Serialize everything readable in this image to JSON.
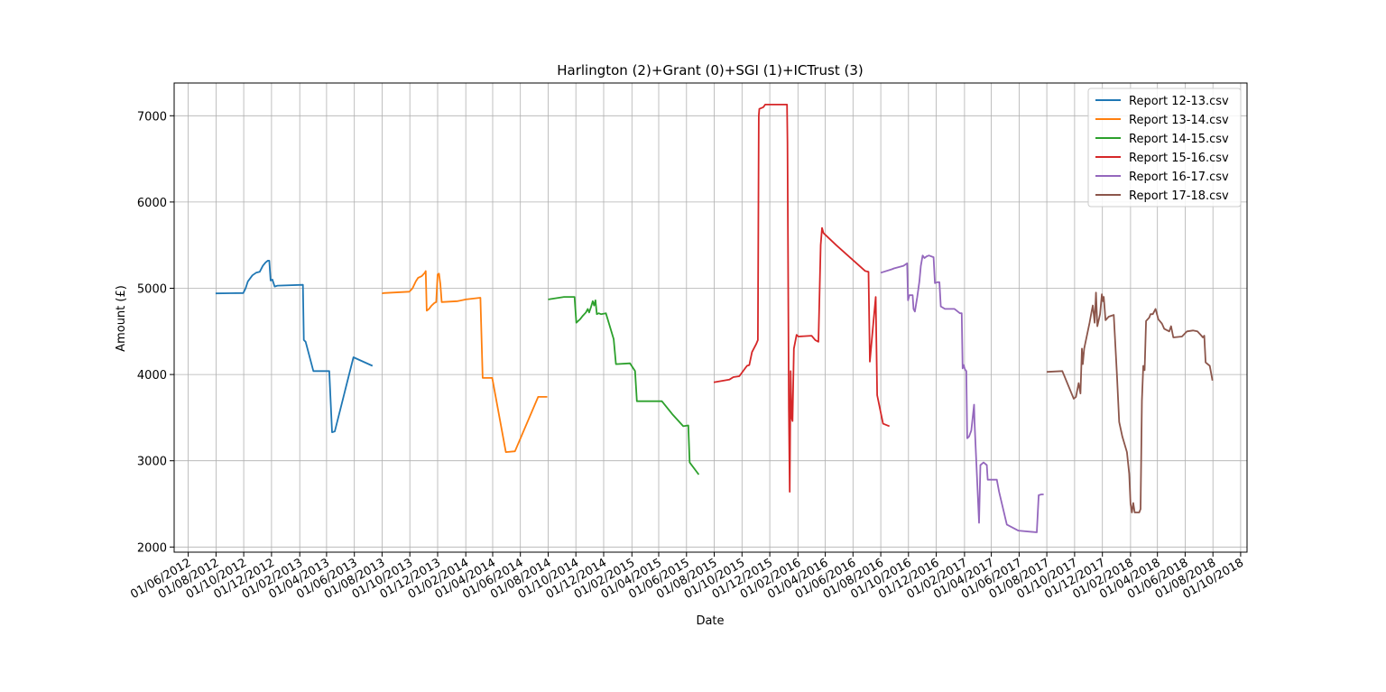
{
  "chart_data": {
    "type": "line",
    "title": "Harlington (2)+Grant (0)+SGI (1)+ICTrust (3)",
    "xlabel": "Date",
    "ylabel": "Amount (£)",
    "xlim": [
      "2012-05-01",
      "2018-10-15"
    ],
    "ylim": [
      1940,
      7380
    ],
    "grid": true,
    "legend_position": "top-right",
    "x_ticks": [
      "01/06/2012",
      "01/08/2012",
      "01/10/2012",
      "01/12/2012",
      "01/02/2013",
      "01/04/2013",
      "01/06/2013",
      "01/08/2013",
      "01/10/2013",
      "01/12/2013",
      "01/02/2014",
      "01/04/2014",
      "01/06/2014",
      "01/08/2014",
      "01/10/2014",
      "01/12/2014",
      "01/02/2015",
      "01/04/2015",
      "01/06/2015",
      "01/08/2015",
      "01/10/2015",
      "01/12/2015",
      "01/02/2016",
      "01/04/2016",
      "01/06/2016",
      "01/08/2016",
      "01/10/2016",
      "01/12/2016",
      "01/02/2017",
      "01/04/2017",
      "01/06/2017",
      "01/08/2017",
      "01/10/2017",
      "01/12/2017",
      "01/02/2018",
      "01/04/2018",
      "01/06/2018",
      "01/08/2018",
      "01/10/2018"
    ],
    "x_tick_dates": [
      "2012-06-01",
      "2012-08-01",
      "2012-10-01",
      "2012-12-01",
      "2013-02-01",
      "2013-04-01",
      "2013-06-01",
      "2013-08-01",
      "2013-10-01",
      "2013-12-01",
      "2014-02-01",
      "2014-04-01",
      "2014-06-01",
      "2014-08-01",
      "2014-10-01",
      "2014-12-01",
      "2015-02-01",
      "2015-04-01",
      "2015-06-01",
      "2015-08-01",
      "2015-10-01",
      "2015-12-01",
      "2016-02-01",
      "2016-04-01",
      "2016-06-01",
      "2016-08-01",
      "2016-10-01",
      "2016-12-01",
      "2017-02-01",
      "2017-04-01",
      "2017-06-01",
      "2017-08-01",
      "2017-10-01",
      "2017-12-01",
      "2018-02-01",
      "2018-04-01",
      "2018-06-01",
      "2018-08-01",
      "2018-10-01"
    ],
    "y_ticks": [
      2000,
      3000,
      4000,
      5000,
      6000,
      7000
    ],
    "series": [
      {
        "name": "Report 12-13.csv",
        "color": "#1f77b4",
        "points": [
          [
            "2012-07-31",
            4940
          ],
          [
            "2012-09-30",
            4945
          ],
          [
            "2012-10-05",
            5000
          ],
          [
            "2012-10-10",
            5080
          ],
          [
            "2012-10-20",
            5150
          ],
          [
            "2012-10-28",
            5180
          ],
          [
            "2012-11-05",
            5190
          ],
          [
            "2012-11-12",
            5260
          ],
          [
            "2012-11-18",
            5300
          ],
          [
            "2012-11-23",
            5320
          ],
          [
            "2012-11-26",
            5320
          ],
          [
            "2012-11-29",
            5090
          ],
          [
            "2012-12-03",
            5100
          ],
          [
            "2012-12-08",
            5020
          ],
          [
            "2012-12-14",
            5030
          ],
          [
            "2013-02-08",
            5040
          ],
          [
            "2013-02-10",
            4400
          ],
          [
            "2013-02-14",
            4380
          ],
          [
            "2013-03-03",
            4040
          ],
          [
            "2013-04-07",
            4040
          ],
          [
            "2013-04-13",
            3330
          ],
          [
            "2013-04-19",
            3340
          ],
          [
            "2013-05-30",
            4200
          ],
          [
            "2013-07-11",
            4100
          ]
        ]
      },
      {
        "name": "Report 13-14.csv",
        "color": "#ff7f0e",
        "points": [
          [
            "2013-08-01",
            4940
          ],
          [
            "2013-08-05",
            4945
          ],
          [
            "2013-09-30",
            4960
          ],
          [
            "2013-10-07",
            5000
          ],
          [
            "2013-10-14",
            5080
          ],
          [
            "2013-10-19",
            5120
          ],
          [
            "2013-10-27",
            5140
          ],
          [
            "2013-11-03",
            5180
          ],
          [
            "2013-11-05",
            5200
          ],
          [
            "2013-11-07",
            4740
          ],
          [
            "2013-11-12",
            4760
          ],
          [
            "2013-11-18",
            4800
          ],
          [
            "2013-11-24",
            4830
          ],
          [
            "2013-11-28",
            4840
          ],
          [
            "2013-12-01",
            5160
          ],
          [
            "2013-12-04",
            5170
          ],
          [
            "2013-12-07",
            5050
          ],
          [
            "2013-12-10",
            4840
          ],
          [
            "2014-01-14",
            4850
          ],
          [
            "2014-02-01",
            4870
          ],
          [
            "2014-03-05",
            4890
          ],
          [
            "2014-03-10",
            3960
          ],
          [
            "2014-03-31",
            3960
          ],
          [
            "2014-04-30",
            3100
          ],
          [
            "2014-05-20",
            3110
          ],
          [
            "2014-07-10",
            3740
          ],
          [
            "2014-07-30",
            3740
          ]
        ]
      },
      {
        "name": "Report 14-15.csv",
        "color": "#2ca02c",
        "points": [
          [
            "2014-08-01",
            4870
          ],
          [
            "2014-09-05",
            4900
          ],
          [
            "2014-09-28",
            4900
          ],
          [
            "2014-10-02",
            4600
          ],
          [
            "2014-10-10",
            4640
          ],
          [
            "2014-10-16",
            4680
          ],
          [
            "2014-10-23",
            4720
          ],
          [
            "2014-10-27",
            4760
          ],
          [
            "2014-10-30",
            4720
          ],
          [
            "2014-11-03",
            4780
          ],
          [
            "2014-11-07",
            4850
          ],
          [
            "2014-11-10",
            4800
          ],
          [
            "2014-11-13",
            4860
          ],
          [
            "2014-11-16",
            4700
          ],
          [
            "2014-11-20",
            4710
          ],
          [
            "2014-11-25",
            4700
          ],
          [
            "2014-12-06",
            4710
          ],
          [
            "2014-12-23",
            4410
          ],
          [
            "2014-12-28",
            4120
          ],
          [
            "2015-01-28",
            4130
          ],
          [
            "2015-02-08",
            4040
          ],
          [
            "2015-02-12",
            3690
          ],
          [
            "2015-04-08",
            3690
          ],
          [
            "2015-05-01",
            3540
          ],
          [
            "2015-05-25",
            3400
          ],
          [
            "2015-06-05",
            3410
          ],
          [
            "2015-06-08",
            2980
          ],
          [
            "2015-06-28",
            2840
          ]
        ]
      },
      {
        "name": "Report 15-16.csv",
        "color": "#d62728",
        "points": [
          [
            "2015-07-31",
            3910
          ],
          [
            "2015-09-03",
            3940
          ],
          [
            "2015-09-12",
            3970
          ],
          [
            "2015-09-25",
            3980
          ],
          [
            "2015-10-12",
            4100
          ],
          [
            "2015-10-17",
            4110
          ],
          [
            "2015-10-23",
            4260
          ],
          [
            "2015-11-01",
            4350
          ],
          [
            "2015-11-05",
            4400
          ],
          [
            "2015-11-07",
            7000
          ],
          [
            "2015-11-08",
            7080
          ],
          [
            "2015-11-17",
            7100
          ],
          [
            "2015-11-21",
            7130
          ],
          [
            "2015-12-12",
            7130
          ],
          [
            "2016-01-08",
            7130
          ],
          [
            "2016-01-09",
            6700
          ],
          [
            "2016-01-12",
            3600
          ],
          [
            "2016-01-14",
            2640
          ],
          [
            "2016-01-16",
            4040
          ],
          [
            "2016-01-18",
            3500
          ],
          [
            "2016-01-20",
            3460
          ],
          [
            "2016-01-23",
            4300
          ],
          [
            "2016-01-29",
            4460
          ],
          [
            "2016-02-02",
            4440
          ],
          [
            "2016-03-02",
            4450
          ],
          [
            "2016-03-10",
            4400
          ],
          [
            "2016-03-17",
            4380
          ],
          [
            "2016-03-22",
            5500
          ],
          [
            "2016-03-25",
            5700
          ],
          [
            "2016-03-28",
            5640
          ],
          [
            "2016-04-25",
            5500
          ],
          [
            "2016-06-28",
            5200
          ],
          [
            "2016-07-05",
            5190
          ],
          [
            "2016-07-08",
            4150
          ],
          [
            "2016-07-14",
            4500
          ],
          [
            "2016-07-21",
            4900
          ],
          [
            "2016-07-24",
            3760
          ],
          [
            "2016-08-06",
            3430
          ],
          [
            "2016-08-20",
            3400
          ]
        ]
      },
      {
        "name": "Report 16-17.csv",
        "color": "#9467bd",
        "points": [
          [
            "2016-08-01",
            5180
          ],
          [
            "2016-08-25",
            5220
          ],
          [
            "2016-08-30",
            5230
          ],
          [
            "2016-09-20",
            5260
          ],
          [
            "2016-09-28",
            5290
          ],
          [
            "2016-09-30",
            4860
          ],
          [
            "2016-10-03",
            4920
          ],
          [
            "2016-10-10",
            4920
          ],
          [
            "2016-10-12",
            4760
          ],
          [
            "2016-10-15",
            4730
          ],
          [
            "2016-10-20",
            4890
          ],
          [
            "2016-10-25",
            5080
          ],
          [
            "2016-10-28",
            5260
          ],
          [
            "2016-11-01",
            5380
          ],
          [
            "2016-11-05",
            5350
          ],
          [
            "2016-11-10",
            5370
          ],
          [
            "2016-11-15",
            5380
          ],
          [
            "2016-11-25",
            5360
          ],
          [
            "2016-11-28",
            5060
          ],
          [
            "2016-12-03",
            5070
          ],
          [
            "2016-12-08",
            5070
          ],
          [
            "2016-12-11",
            4790
          ],
          [
            "2016-12-20",
            4760
          ],
          [
            "2017-01-10",
            4760
          ],
          [
            "2017-01-22",
            4710
          ],
          [
            "2017-01-26",
            4710
          ],
          [
            "2017-01-28",
            4070
          ],
          [
            "2017-01-30",
            4110
          ],
          [
            "2017-02-02",
            4060
          ],
          [
            "2017-02-05",
            4040
          ],
          [
            "2017-02-07",
            3260
          ],
          [
            "2017-02-11",
            3280
          ],
          [
            "2017-02-16",
            3350
          ],
          [
            "2017-02-22",
            3650
          ],
          [
            "2017-02-23",
            3450
          ],
          [
            "2017-03-05",
            2280
          ],
          [
            "2017-03-08",
            2950
          ],
          [
            "2017-03-15",
            2980
          ],
          [
            "2017-03-22",
            2950
          ],
          [
            "2017-03-24",
            2780
          ],
          [
            "2017-04-13",
            2780
          ],
          [
            "2017-04-18",
            2640
          ],
          [
            "2017-05-05",
            2260
          ],
          [
            "2017-05-30",
            2190
          ],
          [
            "2017-07-10",
            2170
          ],
          [
            "2017-07-14",
            2600
          ],
          [
            "2017-07-20",
            2610
          ],
          [
            "2017-07-25",
            2610
          ]
        ]
      },
      {
        "name": "Report 17-18.csv",
        "color": "#8c564b",
        "points": [
          [
            "2017-08-01",
            4030
          ],
          [
            "2017-09-04",
            4040
          ],
          [
            "2017-09-29",
            3720
          ],
          [
            "2017-10-04",
            3740
          ],
          [
            "2017-10-10",
            3900
          ],
          [
            "2017-10-14",
            3780
          ],
          [
            "2017-10-17",
            4300
          ],
          [
            "2017-10-19",
            4120
          ],
          [
            "2017-10-22",
            4300
          ],
          [
            "2017-10-28",
            4450
          ],
          [
            "2017-11-03",
            4600
          ],
          [
            "2017-11-08",
            4750
          ],
          [
            "2017-11-10",
            4800
          ],
          [
            "2017-11-14",
            4600
          ],
          [
            "2017-11-17",
            4950
          ],
          [
            "2017-11-20",
            4560
          ],
          [
            "2017-11-26",
            4700
          ],
          [
            "2017-11-30",
            4930
          ],
          [
            "2017-12-02",
            4850
          ],
          [
            "2017-12-04",
            4900
          ],
          [
            "2017-12-08",
            4630
          ],
          [
            "2017-12-15",
            4670
          ],
          [
            "2017-12-20",
            4680
          ],
          [
            "2017-12-26",
            4690
          ],
          [
            "2018-01-02",
            4000
          ],
          [
            "2018-01-07",
            3450
          ],
          [
            "2018-01-14",
            3280
          ],
          [
            "2018-01-24",
            3100
          ],
          [
            "2018-01-29",
            2850
          ],
          [
            "2018-02-01",
            2500
          ],
          [
            "2018-02-04",
            2400
          ],
          [
            "2018-02-07",
            2510
          ],
          [
            "2018-02-10",
            2400
          ],
          [
            "2018-02-20",
            2400
          ],
          [
            "2018-02-23",
            2440
          ],
          [
            "2018-02-26",
            3700
          ],
          [
            "2018-03-01",
            4100
          ],
          [
            "2018-03-04",
            4050
          ],
          [
            "2018-03-07",
            4620
          ],
          [
            "2018-03-14",
            4660
          ],
          [
            "2018-03-17",
            4700
          ],
          [
            "2018-03-22",
            4700
          ],
          [
            "2018-03-28",
            4760
          ],
          [
            "2018-04-03",
            4640
          ],
          [
            "2018-04-11",
            4590
          ],
          [
            "2018-04-16",
            4530
          ],
          [
            "2018-04-27",
            4500
          ],
          [
            "2018-05-01",
            4560
          ],
          [
            "2018-05-06",
            4430
          ],
          [
            "2018-05-25",
            4440
          ],
          [
            "2018-06-05",
            4500
          ],
          [
            "2018-06-18",
            4510
          ],
          [
            "2018-06-28",
            4500
          ],
          [
            "2018-07-05",
            4460
          ],
          [
            "2018-07-10",
            4430
          ],
          [
            "2018-07-13",
            4450
          ],
          [
            "2018-07-16",
            4140
          ],
          [
            "2018-07-25",
            4100
          ],
          [
            "2018-07-31",
            3930
          ]
        ]
      }
    ]
  }
}
